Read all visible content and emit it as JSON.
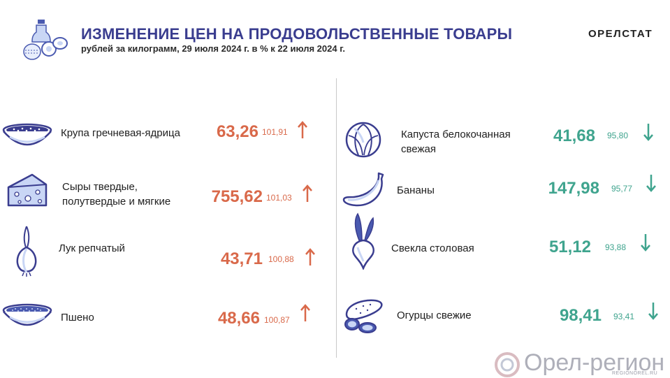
{
  "header": {
    "title": "ИЗМЕНЕНИЕ ЦЕН НА ПРОДОВОЛЬСТВЕННЫЕ ТОВАРЫ",
    "subtitle": "рублей за килограмм, 29 июля 2024 г. в % к 22 июля 2024 г.",
    "brand": "ОРЕЛСТАТ",
    "logo_icon": "groceries-icon"
  },
  "colors": {
    "title": "#3a3d8f",
    "increase": "#d9694a",
    "decrease": "#3fa48e",
    "icon": "#3a3d8f"
  },
  "left_items": [
    {
      "name": "Крупа гречневая-ядрица",
      "price": "63,26",
      "percent": "101,91",
      "trend": "up",
      "icon": "buckwheat-bowl-icon"
    },
    {
      "name": "Сыры твердые, полутвердые и мягкие",
      "price": "755,62",
      "percent": "101,03",
      "trend": "up",
      "icon": "cheese-icon"
    },
    {
      "name": "Лук репчатый",
      "price": "43,71",
      "percent": "100,88",
      "trend": "up",
      "icon": "onion-icon"
    },
    {
      "name": "Пшено",
      "price": "48,66",
      "percent": "100,87",
      "trend": "up",
      "icon": "millet-bowl-icon"
    }
  ],
  "right_items": [
    {
      "name": "Капуста белокочанная свежая",
      "price": "41,68",
      "percent": "95,80",
      "trend": "down",
      "icon": "cabbage-icon"
    },
    {
      "name": "Бананы",
      "price": "147,98",
      "percent": "95,77",
      "trend": "down",
      "icon": "banana-icon"
    },
    {
      "name": "Свекла столовая",
      "price": "51,12",
      "percent": "93,88",
      "trend": "down",
      "icon": "beet-icon"
    },
    {
      "name": "Огурцы свежие",
      "price": "98,41",
      "percent": "93,41",
      "trend": "down",
      "icon": "cucumber-icon"
    }
  ],
  "watermark": {
    "text": "Орел-регион",
    "sub": "REGIONOREL.RU"
  }
}
